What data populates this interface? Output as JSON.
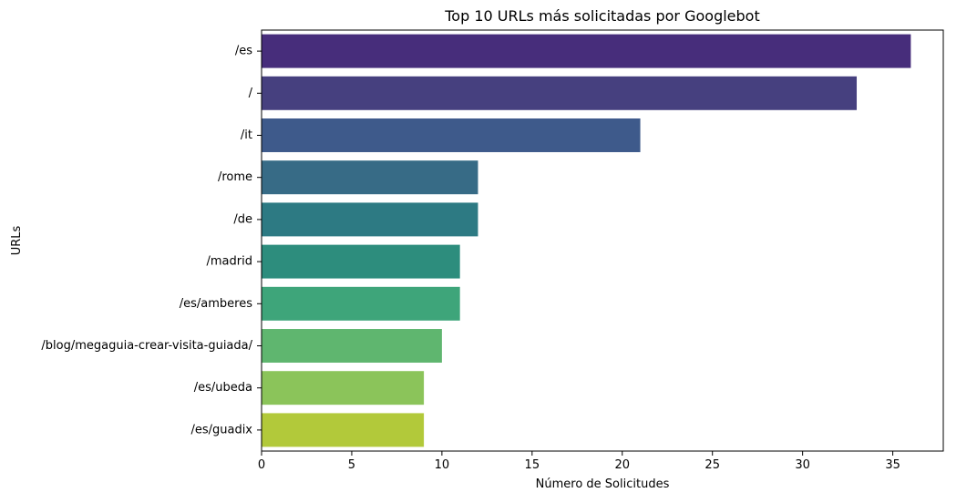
{
  "chart_data": {
    "type": "bar",
    "orientation": "horizontal",
    "title": "Top 10 URLs más solicitadas por Googlebot",
    "xlabel": "Número de Solicitudes",
    "ylabel": "URLs",
    "xlim": [
      0,
      37.8
    ],
    "xticks": [
      0,
      5,
      10,
      15,
      20,
      25,
      30,
      35
    ],
    "grid": false,
    "categories": [
      "/es",
      "/",
      "/it",
      "/rome",
      "/de",
      "/madrid",
      "/es/amberes",
      "/blog/megaguia-crear-visita-guiada/",
      "/es/ubeda",
      "/es/guadix"
    ],
    "values": [
      36,
      33,
      21,
      12,
      12,
      11,
      11,
      10,
      9,
      9
    ],
    "colors": [
      "#472d7b",
      "#46407f",
      "#3e5a8b",
      "#376b86",
      "#2d7a83",
      "#2d8d7d",
      "#3ea57a",
      "#5fb66f",
      "#8bc45a",
      "#b2c93a"
    ]
  }
}
